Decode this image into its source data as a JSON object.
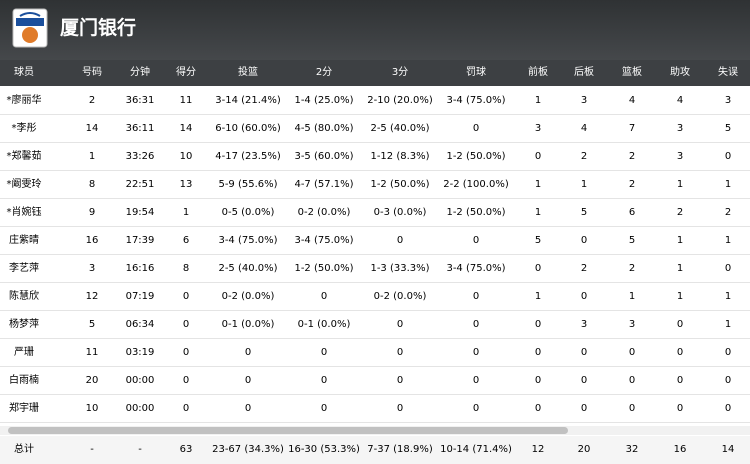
{
  "header": {
    "title": "厦门银行"
  },
  "table": {
    "columns": [
      "球员",
      "号码",
      "分钟",
      "得分",
      "投篮",
      "2分",
      "3分",
      "罚球",
      "前板",
      "后板",
      "篮板",
      "助攻",
      "失误"
    ],
    "rows": [
      [
        "*廖丽华",
        "2",
        "36:31",
        "11",
        "3-14 (21.4%)",
        "1-4 (25.0%)",
        "2-10 (20.0%)",
        "3-4 (75.0%)",
        "1",
        "3",
        "4",
        "4",
        "3"
      ],
      [
        "*李彤",
        "14",
        "36:11",
        "14",
        "6-10 (60.0%)",
        "4-5 (80.0%)",
        "2-5 (40.0%)",
        "0",
        "3",
        "4",
        "7",
        "3",
        "5"
      ],
      [
        "*郑馨茹",
        "1",
        "33:26",
        "10",
        "4-17 (23.5%)",
        "3-5 (60.0%)",
        "1-12 (8.3%)",
        "1-2 (50.0%)",
        "0",
        "2",
        "2",
        "3",
        "0"
      ],
      [
        "*阚雯玲",
        "8",
        "22:51",
        "13",
        "5-9 (55.6%)",
        "4-7 (57.1%)",
        "1-2 (50.0%)",
        "2-2 (100.0%)",
        "1",
        "1",
        "2",
        "1",
        "1"
      ],
      [
        "*肖婉钰",
        "9",
        "19:54",
        "1",
        "0-5 (0.0%)",
        "0-2 (0.0%)",
        "0-3 (0.0%)",
        "1-2 (50.0%)",
        "1",
        "5",
        "6",
        "2",
        "2"
      ],
      [
        "庄紫晴",
        "16",
        "17:39",
        "6",
        "3-4 (75.0%)",
        "3-4 (75.0%)",
        "0",
        "0",
        "5",
        "0",
        "5",
        "1",
        "1"
      ],
      [
        "李艺萍",
        "3",
        "16:16",
        "8",
        "2-5 (40.0%)",
        "1-2 (50.0%)",
        "1-3 (33.3%)",
        "3-4 (75.0%)",
        "0",
        "2",
        "2",
        "1",
        "0"
      ],
      [
        "陈慧欣",
        "12",
        "07:19",
        "0",
        "0-2 (0.0%)",
        "0",
        "0-2 (0.0%)",
        "0",
        "1",
        "0",
        "1",
        "1",
        "1"
      ],
      [
        "杨梦萍",
        "5",
        "06:34",
        "0",
        "0-1 (0.0%)",
        "0-1 (0.0%)",
        "0",
        "0",
        "0",
        "3",
        "3",
        "0",
        "1"
      ],
      [
        "严珊",
        "11",
        "03:19",
        "0",
        "0",
        "0",
        "0",
        "0",
        "0",
        "0",
        "0",
        "0",
        "0"
      ],
      [
        "白雨楠",
        "20",
        "00:00",
        "0",
        "0",
        "0",
        "0",
        "0",
        "0",
        "0",
        "0",
        "0",
        "0"
      ],
      [
        "郑宇珊",
        "10",
        "00:00",
        "0",
        "0",
        "0",
        "0",
        "0",
        "0",
        "0",
        "0",
        "0",
        "0"
      ]
    ],
    "total": [
      "总计",
      "-",
      "-",
      "63",
      "23-67 (34.3%)",
      "16-30 (53.3%)",
      "7-37 (18.9%)",
      "10-14 (71.4%)",
      "12",
      "20",
      "32",
      "16",
      "14"
    ]
  }
}
